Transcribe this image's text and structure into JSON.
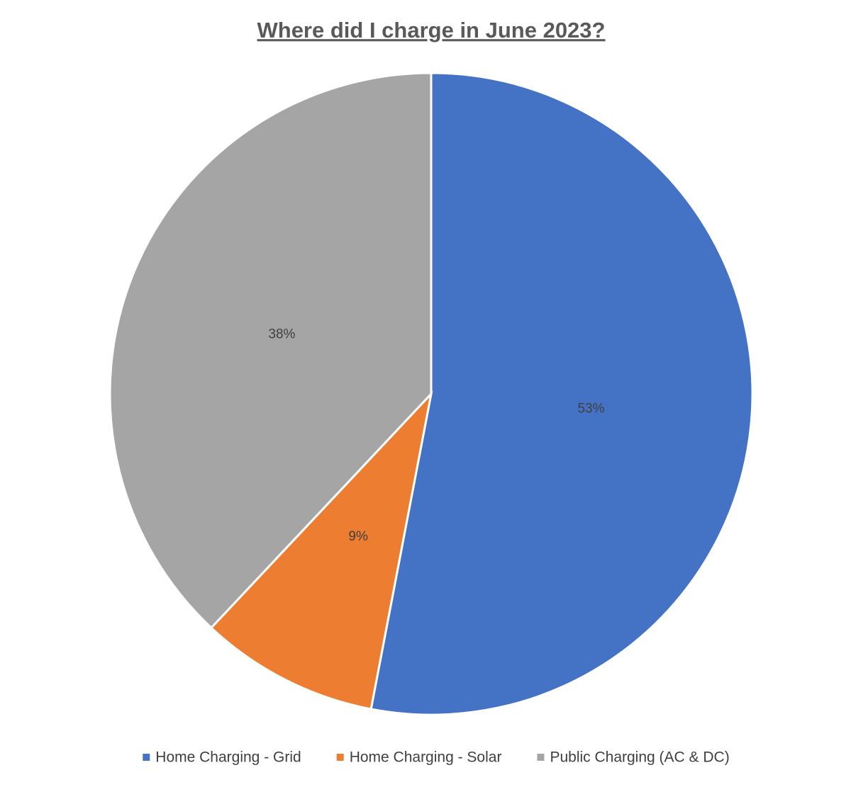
{
  "chart_data": {
    "type": "pie",
    "title": "Where did I charge in June 2023?",
    "categories": [
      "Home Charging - Grid",
      "Home Charging - Solar",
      "Public Charging  (AC & DC)"
    ],
    "values": [
      53,
      9,
      38
    ],
    "value_labels": [
      "53%",
      "9%",
      "38%"
    ],
    "colors": [
      "#4472c4",
      "#ed7d31",
      "#a5a5a5"
    ],
    "legend": "bottom"
  }
}
